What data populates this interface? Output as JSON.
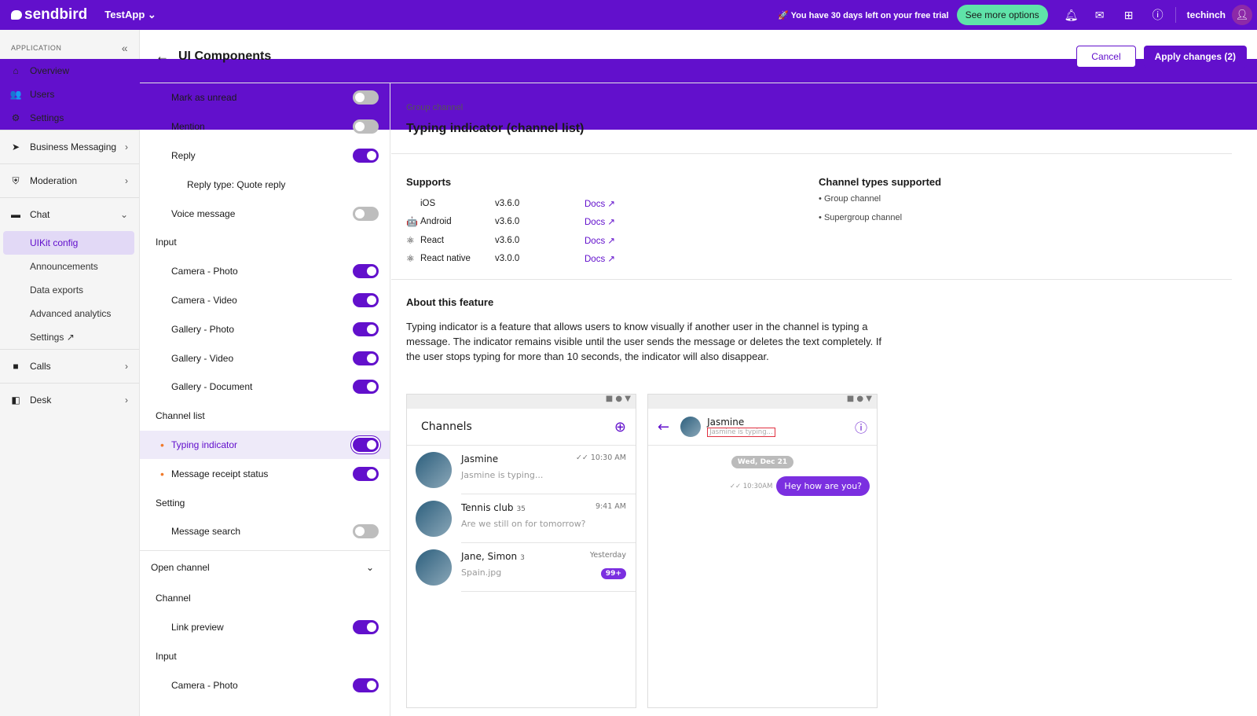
{
  "topbar": {
    "brand": "sendbird",
    "app": "TestApp",
    "trial": "🚀 You have 30 days left on your free trial",
    "see_more": "See more options",
    "user": "techinch"
  },
  "sidebar": {
    "header": "APPLICATION",
    "items": [
      {
        "label": "Overview",
        "icon": "⌂",
        "type": "top"
      },
      {
        "label": "Users",
        "icon": "👥",
        "type": "top"
      },
      {
        "label": "Settings",
        "icon": "⚙",
        "type": "top"
      },
      {
        "label": "Business Messaging",
        "icon": "➤",
        "type": "group",
        "chev": "›"
      },
      {
        "label": "Moderation",
        "icon": "⛨",
        "type": "group",
        "chev": "›"
      },
      {
        "label": "Chat",
        "icon": "▬",
        "type": "group",
        "chev": "⌄"
      },
      {
        "label": "UIKit config",
        "type": "active"
      },
      {
        "label": "Announcements",
        "type": "sub"
      },
      {
        "label": "Data exports",
        "type": "sub"
      },
      {
        "label": "Advanced analytics",
        "type": "sub"
      },
      {
        "label": "Settings ↗",
        "type": "sub"
      },
      {
        "label": "Calls",
        "icon": "■",
        "type": "group",
        "chev": "›"
      },
      {
        "label": "Desk",
        "icon": "◧",
        "type": "group",
        "chev": "›"
      }
    ]
  },
  "header": {
    "title": "UI Components",
    "cancel": "Cancel",
    "apply": "Apply changes (2)"
  },
  "settings": [
    {
      "label": "Mark as unread",
      "type": "item",
      "on": false
    },
    {
      "label": "Mention",
      "type": "item",
      "on": false
    },
    {
      "label": "Reply",
      "type": "item",
      "on": true
    },
    {
      "label": "Reply type: Quote reply",
      "type": "sub2"
    },
    {
      "label": "Voice message",
      "type": "item",
      "on": false
    },
    {
      "label": "Input",
      "type": "sec"
    },
    {
      "label": "Camera - Photo",
      "type": "item",
      "on": true
    },
    {
      "label": "Camera - Video",
      "type": "item",
      "on": true
    },
    {
      "label": "Gallery - Photo",
      "type": "item",
      "on": true
    },
    {
      "label": "Gallery - Video",
      "type": "item",
      "on": true
    },
    {
      "label": "Gallery - Document",
      "type": "item",
      "on": true
    },
    {
      "label": "Channel list",
      "type": "sec"
    },
    {
      "label": "Typing indicator",
      "type": "dot",
      "on": true,
      "selected": true
    },
    {
      "label": "Message receipt status",
      "type": "dot",
      "on": true
    },
    {
      "label": "Setting",
      "type": "sec"
    },
    {
      "label": "Message search",
      "type": "item",
      "on": false
    },
    {
      "label": "Open channel",
      "type": "open"
    },
    {
      "label": "Channel",
      "type": "sec"
    },
    {
      "label": "Link preview",
      "type": "item",
      "on": true
    },
    {
      "label": "Input",
      "type": "sec"
    },
    {
      "label": "Camera - Photo",
      "type": "item",
      "on": true
    }
  ],
  "feature": {
    "category": "Group channel",
    "title": "Typing indicator (channel list)",
    "supports_label": "Supports",
    "platforms": [
      {
        "name": "iOS",
        "icon": "",
        "version": "v3.6.0",
        "docs": "Docs ↗"
      },
      {
        "name": "Android",
        "icon": "🤖",
        "version": "v3.6.0",
        "docs": "Docs ↗"
      },
      {
        "name": "React",
        "icon": "⚛",
        "version": "v3.6.0",
        "docs": "Docs ↗"
      },
      {
        "name": "React native",
        "icon": "⚛",
        "version": "v3.0.0",
        "docs": "Docs ↗"
      }
    ],
    "channel_types_label": "Channel types supported",
    "channel_types": [
      "Group channel",
      "Supergroup channel"
    ],
    "about_label": "About this feature",
    "about": "Typing indicator is a feature that allows users to know visually if another user in the channel is typing a message. The indicator remains visible until the user sends the message or deletes the text completely. If the user stops typing for more than 10 seconds, the indicator will also disappear."
  },
  "preview": {
    "status_icons": "■ ● ▼",
    "channels_title": "Channels",
    "channels": [
      {
        "name": "Jasmine",
        "count": "",
        "time": "✓✓ 10:30 AM",
        "msg": "Jasmine is typing...",
        "badge": ""
      },
      {
        "name": "Tennis club",
        "count": "35",
        "time": "9:41 AM",
        "msg": "Are we still on for tomorrow?",
        "badge": ""
      },
      {
        "name": "Jane, Simon",
        "count": "3",
        "time": "Yesterday",
        "msg": "Spain.jpg",
        "badge": "99+"
      }
    ],
    "chat": {
      "name": "Jasmine",
      "typing": "Jasmine is typing...",
      "date": "Wed, Dec 21",
      "msg_time": "✓✓ 10:30AM",
      "msg": "Hey how are you?"
    }
  }
}
